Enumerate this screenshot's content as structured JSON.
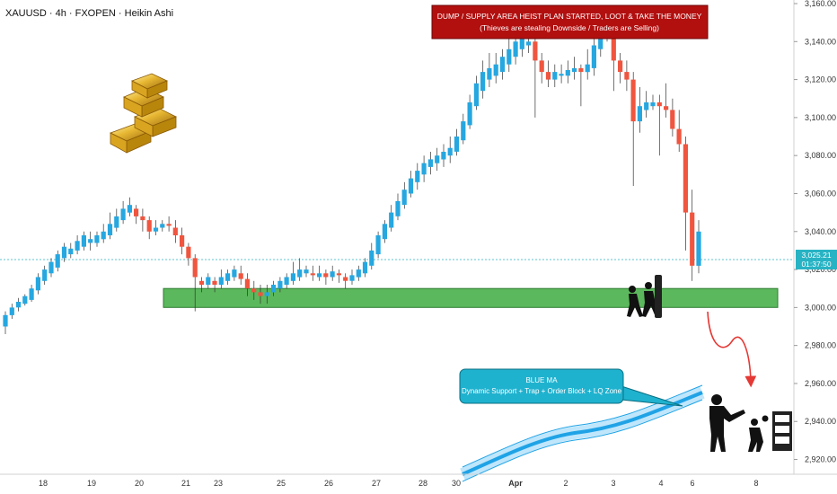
{
  "header": {
    "title": "XAUUSD · 4h · FXOPEN · Heikin Ashi"
  },
  "banner": {
    "line1": "DUMP / SUPPLY AREA HEIST PLAN STARTED, LOOT & TAKE THE MONEY",
    "line2": "(Thieves are stealing Downside / Traders are Selling)"
  },
  "callout": {
    "line1": "BLUE MA",
    "line2": "Dynamic Support + Trap + Order Block + LQ Zone"
  },
  "price_tag": {
    "price": "3,025.21",
    "countdown": "01:37:50"
  },
  "colors": {
    "bull": "#26a7e0",
    "bear": "#f0553f",
    "zone": "#5cb85c",
    "ma": "#1fa3e6",
    "banner": "#b20f0f",
    "callout": "#1fb2cf",
    "tag": "#27b3c4"
  },
  "icons": {
    "gold": "gold-bars-icon",
    "thieves": "thieves-icon",
    "arrow": "red-curved-arrow-icon"
  },
  "chart_data": {
    "type": "candlestick",
    "title": "XAUUSD · 4h · FXOPEN · Heikin Ashi",
    "y_axis": {
      "position": "right",
      "ticks": [
        "3,160.00",
        "3,140.00",
        "3,120.00",
        "3,100.00",
        "3,080.00",
        "3,060.00",
        "3,040.00",
        "3,020.00",
        "3,000.00",
        "2,980.00",
        "2,960.00",
        "2,940.00",
        "2,920.00"
      ],
      "range": [
        2916,
        3160
      ]
    },
    "x_axis": {
      "ticks": [
        "18",
        "19",
        "20",
        "21",
        "23",
        "25",
        "26",
        "27",
        "28",
        "30",
        "Apr",
        "2",
        "3",
        "4",
        "6",
        "8"
      ]
    },
    "current_price": 3025.21,
    "support_zone": [
      3000,
      3010
    ],
    "candles": [
      [
        2990,
        2996,
        2986,
        2998
      ],
      [
        2996,
        3000,
        2994,
        3002
      ],
      [
        3000,
        3003,
        2998,
        3005
      ],
      [
        3002,
        3006,
        3001,
        3007
      ],
      [
        3004,
        3010,
        3003,
        3012
      ],
      [
        3009,
        3016,
        3007,
        3018
      ],
      [
        3014,
        3020,
        3012,
        3022
      ],
      [
        3018,
        3024,
        3016,
        3026
      ],
      [
        3021,
        3028,
        3019,
        3030
      ],
      [
        3026,
        3032,
        3024,
        3034
      ],
      [
        3028,
        3031,
        3026,
        3034
      ],
      [
        3030,
        3035,
        3028,
        3038
      ],
      [
        3032,
        3038,
        3030,
        3040
      ],
      [
        3034,
        3036,
        3030,
        3040
      ],
      [
        3034,
        3038,
        3032,
        3040
      ],
      [
        3036,
        3040,
        3034,
        3044
      ],
      [
        3038,
        3044,
        3036,
        3050
      ],
      [
        3042,
        3048,
        3040,
        3052
      ],
      [
        3046,
        3052,
        3044,
        3056
      ],
      [
        3050,
        3054,
        3048,
        3058
      ],
      [
        3052,
        3048,
        3044,
        3054
      ],
      [
        3048,
        3046,
        3040,
        3052
      ],
      [
        3046,
        3040,
        3036,
        3048
      ],
      [
        3040,
        3042,
        3038,
        3046
      ],
      [
        3042,
        3044,
        3040,
        3046
      ],
      [
        3044,
        3043,
        3040,
        3048
      ],
      [
        3042,
        3038,
        3034,
        3046
      ],
      [
        3038,
        3032,
        3028,
        3042
      ],
      [
        3032,
        3026,
        3022,
        3034
      ],
      [
        3026,
        3016,
        2998,
        3028
      ],
      [
        3014,
        3012,
        3008,
        3016
      ],
      [
        3012,
        3016,
        3010,
        3018
      ],
      [
        3014,
        3012,
        3008,
        3016
      ],
      [
        3012,
        3016,
        3010,
        3020
      ],
      [
        3014,
        3018,
        3012,
        3020
      ],
      [
        3016,
        3020,
        3014,
        3022
      ],
      [
        3018,
        3015,
        3012,
        3022
      ],
      [
        3015,
        3010,
        3006,
        3018
      ],
      [
        3010,
        3008,
        3004,
        3014
      ],
      [
        3008,
        3006,
        3002,
        3012
      ],
      [
        3006,
        3008,
        3002,
        3012
      ],
      [
        3008,
        3012,
        3006,
        3014
      ],
      [
        3010,
        3014,
        3008,
        3016
      ],
      [
        3012,
        3016,
        3010,
        3018
      ],
      [
        3014,
        3018,
        3012,
        3024
      ],
      [
        3016,
        3020,
        3014,
        3026
      ],
      [
        3018,
        3020,
        3016,
        3022
      ],
      [
        3018,
        3017,
        3014,
        3022
      ],
      [
        3016,
        3018,
        3014,
        3022
      ],
      [
        3018,
        3016,
        3012,
        3020
      ],
      [
        3016,
        3019,
        3014,
        3022
      ],
      [
        3018,
        3017,
        3013,
        3020
      ],
      [
        3016,
        3014,
        3010,
        3018
      ],
      [
        3014,
        3017,
        3012,
        3020
      ],
      [
        3016,
        3020,
        3014,
        3022
      ],
      [
        3018,
        3024,
        3016,
        3026
      ],
      [
        3022,
        3030,
        3020,
        3034
      ],
      [
        3028,
        3038,
        3026,
        3040
      ],
      [
        3036,
        3044,
        3034,
        3046
      ],
      [
        3042,
        3050,
        3040,
        3054
      ],
      [
        3048,
        3056,
        3046,
        3060
      ],
      [
        3054,
        3062,
        3052,
        3066
      ],
      [
        3060,
        3068,
        3058,
        3072
      ],
      [
        3066,
        3072,
        3062,
        3076
      ],
      [
        3070,
        3076,
        3066,
        3080
      ],
      [
        3074,
        3078,
        3070,
        3082
      ],
      [
        3076,
        3080,
        3072,
        3084
      ],
      [
        3078,
        3082,
        3074,
        3086
      ],
      [
        3080,
        3084,
        3076,
        3090
      ],
      [
        3082,
        3090,
        3080,
        3094
      ],
      [
        3088,
        3098,
        3086,
        3102
      ],
      [
        3096,
        3108,
        3094,
        3112
      ],
      [
        3106,
        3118,
        3104,
        3122
      ],
      [
        3114,
        3124,
        3110,
        3130
      ],
      [
        3120,
        3126,
        3116,
        3134
      ],
      [
        3122,
        3128,
        3118,
        3134
      ],
      [
        3124,
        3132,
        3120,
        3136
      ],
      [
        3128,
        3136,
        3124,
        3144
      ],
      [
        3132,
        3140,
        3128,
        3146
      ],
      [
        3136,
        3142,
        3132,
        3148
      ],
      [
        3138,
        3140,
        3134,
        3144
      ],
      [
        3140,
        3130,
        3100,
        3144
      ],
      [
        3130,
        3124,
        3118,
        3134
      ],
      [
        3124,
        3120,
        3116,
        3130
      ],
      [
        3120,
        3124,
        3116,
        3128
      ],
      [
        3122,
        3123,
        3118,
        3128
      ],
      [
        3122,
        3125,
        3118,
        3130
      ],
      [
        3124,
        3126,
        3120,
        3132
      ],
      [
        3126,
        3124,
        3106,
        3128
      ],
      [
        3124,
        3128,
        3120,
        3136
      ],
      [
        3126,
        3138,
        3122,
        3146
      ],
      [
        3136,
        3150,
        3132,
        3158
      ],
      [
        3148,
        3145,
        3140,
        3156
      ],
      [
        3145,
        3130,
        3114,
        3150
      ],
      [
        3130,
        3124,
        3118,
        3134
      ],
      [
        3124,
        3120,
        3114,
        3130
      ],
      [
        3120,
        3098,
        3064,
        3124
      ],
      [
        3098,
        3106,
        3092,
        3116
      ],
      [
        3104,
        3108,
        3100,
        3114
      ],
      [
        3106,
        3108,
        3104,
        3112
      ],
      [
        3108,
        3106,
        3080,
        3112
      ],
      [
        3106,
        3104,
        3100,
        3118
      ],
      [
        3104,
        3094,
        3090,
        3110
      ],
      [
        3094,
        3086,
        3082,
        3104
      ],
      [
        3086,
        3050,
        3030,
        3090
      ],
      [
        3050,
        3022,
        3014,
        3062
      ],
      [
        3022,
        3040,
        3018,
        3046
      ]
    ]
  }
}
